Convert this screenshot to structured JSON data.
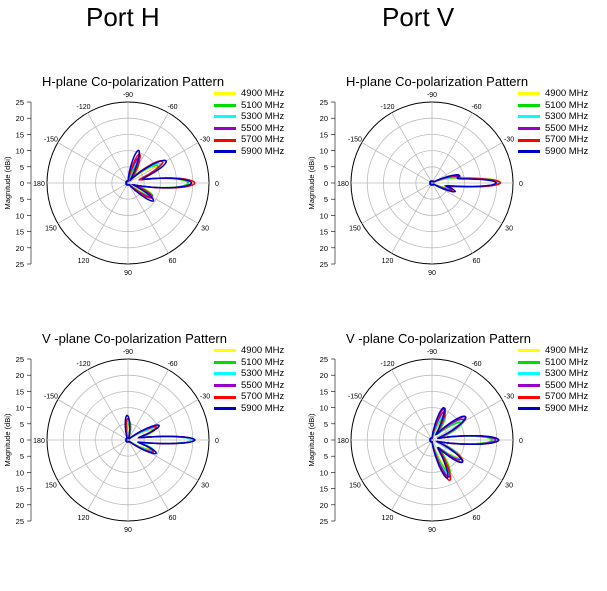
{
  "ports": {
    "h": "Port H",
    "v": "Port V"
  },
  "ylabel": "Magnitude (dBi)",
  "rticks": [
    "25",
    "20",
    "15",
    "10",
    "5",
    "0",
    "5",
    "10",
    "15",
    "20",
    "25"
  ],
  "angle_labels": [
    {
      "deg": -90,
      "text": "-90"
    },
    {
      "deg": -60,
      "text": "-60"
    },
    {
      "deg": -30,
      "text": "-30"
    },
    {
      "deg": 0,
      "text": "0"
    },
    {
      "deg": 30,
      "text": "30"
    },
    {
      "deg": 60,
      "text": "60"
    },
    {
      "deg": 90,
      "text": "90"
    },
    {
      "deg": 120,
      "text": "120"
    },
    {
      "deg": 150,
      "text": "150"
    },
    {
      "deg": 180,
      "text": "180"
    },
    {
      "deg": -150,
      "text": "-150"
    },
    {
      "deg": -120,
      "text": "-120"
    }
  ],
  "colors": [
    "#ffff00",
    "#00dd00",
    "#00ffff",
    "#9900cc",
    "#ff0000",
    "#0000cc"
  ],
  "chart_data": [
    {
      "type": "polar",
      "title": "H-plane Co-polarization Pattern",
      "port": "Port H",
      "rlim": [
        0,
        25
      ],
      "series": [
        {
          "name": "4900 MHz",
          "lobes": [
            [
              0,
              18,
              7
            ],
            [
              -28,
              10,
              8
            ],
            [
              25,
              7,
              7
            ],
            [
              -60,
              6,
              7
            ]
          ]
        },
        {
          "name": "5100 MHz",
          "lobes": [
            [
              0,
              18,
              7
            ],
            [
              -30,
              10,
              8
            ],
            [
              28,
              8,
              7
            ],
            [
              -62,
              6,
              7
            ]
          ]
        },
        {
          "name": "5300 MHz",
          "lobes": [
            [
              0,
              19,
              7
            ],
            [
              -30,
              11,
              8
            ],
            [
              30,
              7,
              7
            ],
            [
              -65,
              7,
              7
            ]
          ]
        },
        {
          "name": "5500 MHz",
          "lobes": [
            [
              0,
              19,
              7
            ],
            [
              -32,
              12,
              8
            ],
            [
              30,
              8,
              7
            ],
            [
              -66,
              8,
              7
            ]
          ]
        },
        {
          "name": "5700 MHz",
          "lobes": [
            [
              0,
              20,
              7
            ],
            [
              -32,
              12,
              8
            ],
            [
              32,
              8,
              7
            ],
            [
              -68,
              9,
              7
            ]
          ]
        },
        {
          "name": "5900 MHz",
          "lobes": [
            [
              0,
              19,
              7
            ],
            [
              -30,
              13,
              8
            ],
            [
              35,
              9,
              7
            ],
            [
              -72,
              10,
              7
            ]
          ]
        }
      ]
    },
    {
      "type": "polar",
      "title": "H-plane Co-polarization Pattern",
      "port": "Port V",
      "rlim": [
        0,
        25
      ],
      "series": [
        {
          "name": "4900 MHz",
          "lobes": [
            [
              0,
              19,
              5
            ],
            [
              -10,
              6,
              6
            ],
            [
              15,
              5,
              6
            ]
          ]
        },
        {
          "name": "5100 MHz",
          "lobes": [
            [
              0,
              19,
              5
            ],
            [
              -12,
              6,
              6
            ],
            [
              15,
              5,
              6
            ]
          ]
        },
        {
          "name": "5300 MHz",
          "lobes": [
            [
              0,
              19,
              5
            ],
            [
              -12,
              7,
              6
            ],
            [
              18,
              5,
              6
            ]
          ]
        },
        {
          "name": "5500 MHz",
          "lobes": [
            [
              0,
              20,
              5
            ],
            [
              -14,
              7,
              6
            ],
            [
              18,
              6,
              6
            ]
          ]
        },
        {
          "name": "5700 MHz",
          "lobes": [
            [
              0,
              20,
              5
            ],
            [
              -15,
              8,
              6
            ],
            [
              20,
              6,
              6
            ]
          ]
        },
        {
          "name": "5900 MHz",
          "lobes": [
            [
              0,
              19,
              5
            ],
            [
              -16,
              8,
              6
            ],
            [
              20,
              7,
              6
            ]
          ]
        }
      ]
    },
    {
      "type": "polar",
      "title": "V -plane Co-polarization Pattern",
      "port": "Port H",
      "rlim": [
        0,
        25
      ],
      "series": [
        {
          "name": "4900 MHz",
          "lobes": [
            [
              0,
              19,
              5
            ],
            [
              -20,
              8,
              7
            ],
            [
              20,
              7,
              7
            ],
            [
              -85,
              4,
              8
            ]
          ]
        },
        {
          "name": "5100 MHz",
          "lobes": [
            [
              0,
              19,
              5
            ],
            [
              -22,
              8,
              7
            ],
            [
              22,
              7,
              7
            ],
            [
              -85,
              5,
              8
            ]
          ]
        },
        {
          "name": "5300 MHz",
          "lobes": [
            [
              0,
              19,
              5
            ],
            [
              -22,
              8,
              7
            ],
            [
              22,
              8,
              7
            ],
            [
              -88,
              5,
              8
            ]
          ]
        },
        {
          "name": "5500 MHz",
          "lobes": [
            [
              0,
              20,
              5
            ],
            [
              -24,
              9,
              7
            ],
            [
              24,
              8,
              7
            ],
            [
              -90,
              6,
              8
            ]
          ]
        },
        {
          "name": "5700 MHz",
          "lobes": [
            [
              0,
              20,
              5
            ],
            [
              -25,
              9,
              7
            ],
            [
              25,
              8,
              7
            ],
            [
              -90,
              6,
              8
            ]
          ]
        },
        {
          "name": "5900 MHz",
          "lobes": [
            [
              0,
              20,
              5
            ],
            [
              -25,
              10,
              7
            ],
            [
              25,
              9,
              7
            ],
            [
              -92,
              7,
              8
            ]
          ]
        }
      ]
    },
    {
      "type": "polar",
      "title": "V -plane Co-polarization Pattern",
      "port": "Port V",
      "rlim": [
        0,
        25
      ],
      "series": [
        {
          "name": "4900 MHz",
          "lobes": [
            [
              0,
              18,
              6
            ],
            [
              -30,
              10,
              8
            ],
            [
              32,
              9,
              8
            ],
            [
              60,
              10,
              7
            ],
            [
              -60,
              7,
              7
            ]
          ]
        },
        {
          "name": "5100 MHz",
          "lobes": [
            [
              0,
              18,
              6
            ],
            [
              -30,
              10,
              8
            ],
            [
              32,
              10,
              8
            ],
            [
              62,
              11,
              7
            ],
            [
              -62,
              8,
              7
            ]
          ]
        },
        {
          "name": "5300 MHz",
          "lobes": [
            [
              0,
              19,
              6
            ],
            [
              -32,
              11,
              8
            ],
            [
              33,
              10,
              8
            ],
            [
              64,
              11,
              7
            ],
            [
              -64,
              8,
              7
            ]
          ]
        },
        {
          "name": "5500 MHz",
          "lobes": [
            [
              0,
              19,
              6
            ],
            [
              -33,
              11,
              8
            ],
            [
              34,
              10,
              8
            ],
            [
              65,
              12,
              7
            ],
            [
              -66,
              9,
              7
            ]
          ]
        },
        {
          "name": "5700 MHz",
          "lobes": [
            [
              0,
              20,
              6
            ],
            [
              -34,
              12,
              8
            ],
            [
              35,
              11,
              8
            ],
            [
              66,
              13,
              7
            ],
            [
              -68,
              10,
              7
            ]
          ]
        },
        {
          "name": "5900 MHz",
          "lobes": [
            [
              0,
              20,
              6
            ],
            [
              -35,
              12,
              8
            ],
            [
              36,
              11,
              8
            ],
            [
              68,
              12,
              7
            ],
            [
              -70,
              10,
              7
            ]
          ]
        }
      ]
    }
  ]
}
